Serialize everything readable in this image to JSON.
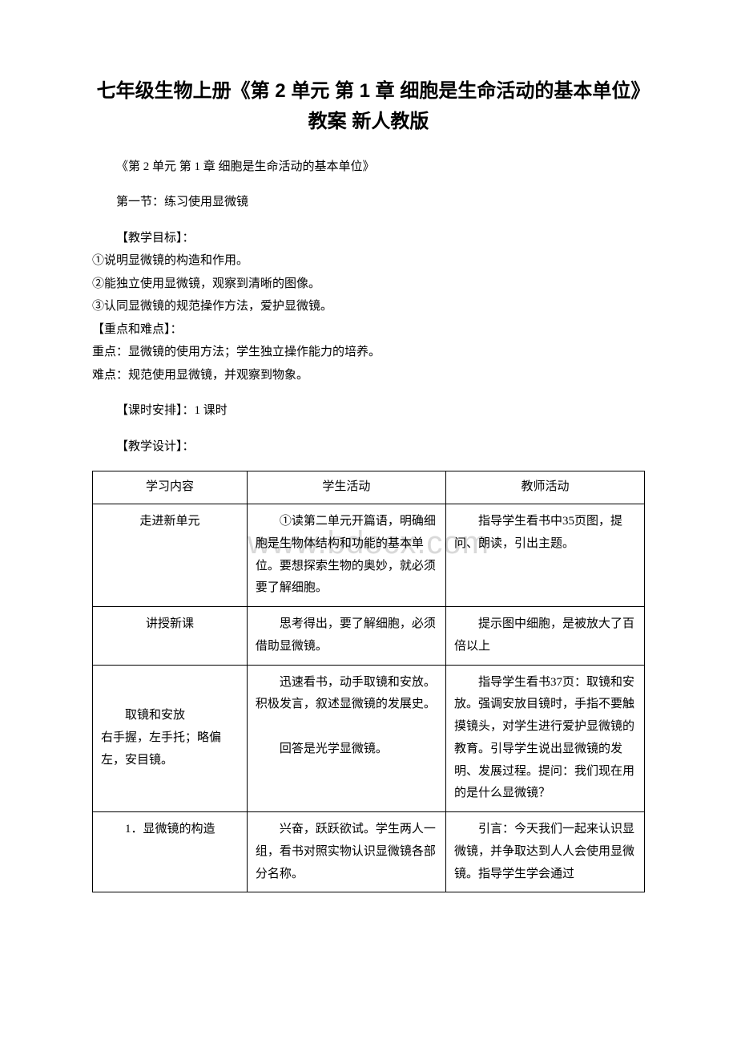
{
  "watermark": "www.bdocx.com",
  "title": "七年级生物上册《第 2 单元 第 1 章 细胞是生命活动的基本单位》教案 新人教版",
  "subtitle": "《第 2 单元 第 1 章 细胞是生命活动的基本单位》",
  "section_name": "第一节：练习使用显微镜",
  "objectives_header": "【教学目标】：",
  "objectives": [
    "①说明显微镜的构造和作用。",
    "②能独立使用显微镜，观察到清晰的图像。",
    "③认同显微镜的规范操作方法，爱护显微镜。"
  ],
  "key_difficulty_header": "【重点和难点】：",
  "key_point": "重点：显微镜的使用方法；学生独立操作能力的培养。",
  "difficulty_point": "难点：规范使用显微镜，并观察到物象。",
  "schedule": "【课时安排】：1 课时",
  "design_header": "【教学设计】：",
  "table": {
    "headers": [
      "学习内容",
      "学生活动",
      "教师活动"
    ],
    "rows": [
      {
        "col1": "走进新单元",
        "col2": "　　①读第二单元开篇语，明确细胞是生物体结构和功能的基本单位。要想探索生物的奥妙，就必须要了解细胞。",
        "col3": "　　指导学生看书中35页图，提问、朗读，引出主题。"
      },
      {
        "col1": "讲授新课",
        "col2": "　　思考得出，要了解细胞，必须借助显微镜。",
        "col3": "　　提示图中细胞，是被放大了百倍以上"
      },
      {
        "col1": "　　取镜和安放\n右手握，左手托；略偏左，安目镜。",
        "col2": "　　迅速看书，动手取镜和安放。积极发言，叙述显微镜的发展史。\n\n　　回答是光学显微镜。",
        "col3": "　　指导学生看书37页：取镜和安放。强调安放目镜时，手指不要触摸镜头，对学生进行爱护显微镜的教育。引导学生说出显微镜的发明、发展过程。提问：我们现在用的是什么显微镜？"
      },
      {
        "col1": "　　1．显微镜的构造",
        "col2": "　　兴奋，跃跃欲试。学生两人一组，看书对照实物认识显微镜各部分名称。",
        "col3": "　　引言：今天我们一起来认识显微镜，并争取达到人人会使用显微镜。指导学生学会通过"
      }
    ]
  }
}
